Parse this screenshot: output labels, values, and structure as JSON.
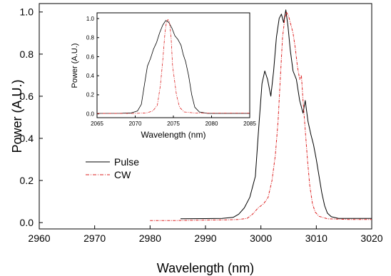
{
  "chart_data": [
    {
      "id": "main",
      "type": "line",
      "xlabel": "Wavelength (nm)",
      "ylabel": "Power (A.U.)",
      "xlim": [
        2960,
        3020
      ],
      "ylim": [
        -0.03,
        1.04
      ],
      "xticks": [
        2960,
        2970,
        2980,
        2990,
        3000,
        3010,
        3020
      ],
      "xtick_labels": [
        "2960",
        "2970",
        "2980",
        "2990",
        "3000",
        "3010",
        "3020"
      ],
      "yticks": [
        0.0,
        0.2,
        0.4,
        0.6,
        0.8,
        1.0
      ],
      "ytick_labels": [
        "0.0",
        "0.2",
        "0.4",
        "0.6",
        "0.8",
        "1.0"
      ],
      "legend": {
        "position": "center-left"
      },
      "series": [
        {
          "name": "Pulse",
          "color": "#000000",
          "style": "solid",
          "points": [
            [
              2985.5,
              0.018
            ],
            [
              2990,
              0.019
            ],
            [
              2993,
              0.02
            ],
            [
              2995,
              0.025
            ],
            [
              2996,
              0.04
            ],
            [
              2997,
              0.07
            ],
            [
              2998,
              0.12
            ],
            [
              2999,
              0.22
            ],
            [
              2999.6,
              0.45
            ],
            [
              3000.2,
              0.66
            ],
            [
              3000.7,
              0.72
            ],
            [
              3001.2,
              0.68
            ],
            [
              3001.8,
              0.6
            ],
            [
              3002.3,
              0.72
            ],
            [
              3002.8,
              0.88
            ],
            [
              3003.3,
              0.97
            ],
            [
              3003.7,
              0.99
            ],
            [
              3004.1,
              0.95
            ],
            [
              3004.5,
              1.01
            ],
            [
              3004.9,
              0.93
            ],
            [
              3005.3,
              0.82
            ],
            [
              3005.8,
              0.72
            ],
            [
              3006.4,
              0.68
            ],
            [
              3007,
              0.58
            ],
            [
              3007.6,
              0.52
            ],
            [
              3008,
              0.58
            ],
            [
              3008.5,
              0.48
            ],
            [
              3009,
              0.42
            ],
            [
              3009.5,
              0.37
            ],
            [
              3010,
              0.3
            ],
            [
              3010.5,
              0.22
            ],
            [
              3011,
              0.14
            ],
            [
              3011.5,
              0.08
            ],
            [
              3012,
              0.045
            ],
            [
              3012.7,
              0.028
            ],
            [
              3014,
              0.02
            ],
            [
              3017,
              0.02
            ],
            [
              3020,
              0.02
            ]
          ]
        },
        {
          "name": "CW",
          "color": "#dd2222",
          "style": "dash-dot",
          "points": [
            [
              2980,
              0.01
            ],
            [
              2985,
              0.01
            ],
            [
              2990,
              0.012
            ],
            [
              2994,
              0.013
            ],
            [
              2996,
              0.015
            ],
            [
              2997.5,
              0.02
            ],
            [
              2998.5,
              0.04
            ],
            [
              2999.5,
              0.07
            ],
            [
              3000.5,
              0.09
            ],
            [
              3001.3,
              0.12
            ],
            [
              3002,
              0.2
            ],
            [
              3002.6,
              0.32
            ],
            [
              3003.1,
              0.48
            ],
            [
              3003.5,
              0.68
            ],
            [
              3003.9,
              0.88
            ],
            [
              3004.3,
              0.97
            ],
            [
              3004.6,
              1.0
            ],
            [
              3005,
              0.98
            ],
            [
              3005.4,
              0.94
            ],
            [
              3005.8,
              0.9
            ],
            [
              3006.2,
              0.83
            ],
            [
              3006.6,
              0.74
            ],
            [
              3007,
              0.68
            ],
            [
              3007.3,
              0.7
            ],
            [
              3007.6,
              0.58
            ],
            [
              3008,
              0.44
            ],
            [
              3008.4,
              0.3
            ],
            [
              3008.8,
              0.18
            ],
            [
              3009.3,
              0.09
            ],
            [
              3009.8,
              0.05
            ],
            [
              3010.5,
              0.03
            ],
            [
              3012,
              0.018
            ],
            [
              3016,
              0.015
            ],
            [
              3020,
              0.015
            ]
          ]
        }
      ]
    },
    {
      "id": "inset",
      "type": "line",
      "xlabel": "Wavelength (nm)",
      "ylabel": "Power (A.U.)",
      "xlim": [
        2065,
        2085
      ],
      "ylim": [
        -0.04,
        1.06
      ],
      "xticks": [
        2065,
        2070,
        2075,
        2080,
        2085
      ],
      "xtick_labels": [
        "2065",
        "2070",
        "2075",
        "2080",
        "2085"
      ],
      "yticks": [
        0.0,
        0.2,
        0.4,
        0.6,
        0.8,
        1.0
      ],
      "ytick_labels": [
        "0.0",
        "0.2",
        "0.4",
        "0.6",
        "0.8",
        "1.0"
      ],
      "series": [
        {
          "color": "#000000",
          "style": "solid",
          "points": [
            [
              2065,
              0.005
            ],
            [
              2068,
              0.006
            ],
            [
              2069.5,
              0.01
            ],
            [
              2070.3,
              0.03
            ],
            [
              2070.8,
              0.1
            ],
            [
              2071.2,
              0.3
            ],
            [
              2071.6,
              0.5
            ],
            [
              2072,
              0.58
            ],
            [
              2072.4,
              0.68
            ],
            [
              2072.8,
              0.75
            ],
            [
              2073.2,
              0.85
            ],
            [
              2073.6,
              0.93
            ],
            [
              2074,
              0.98
            ],
            [
              2074.4,
              0.96
            ],
            [
              2074.8,
              0.9
            ],
            [
              2075.2,
              0.82
            ],
            [
              2075.6,
              0.78
            ],
            [
              2076,
              0.72
            ],
            [
              2076.3,
              0.62
            ],
            [
              2076.6,
              0.55
            ],
            [
              2077,
              0.4
            ],
            [
              2077.4,
              0.2
            ],
            [
              2077.8,
              0.07
            ],
            [
              2078.4,
              0.02
            ],
            [
              2079.5,
              0.005
            ],
            [
              2085,
              0.005
            ]
          ]
        },
        {
          "color": "#dd2222",
          "style": "dash-dot",
          "points": [
            [
              2065,
              0.004
            ],
            [
              2070,
              0.005
            ],
            [
              2071.5,
              0.01
            ],
            [
              2072.3,
              0.03
            ],
            [
              2072.9,
              0.09
            ],
            [
              2073.3,
              0.3
            ],
            [
              2073.6,
              0.55
            ],
            [
              2073.9,
              0.85
            ],
            [
              2074.1,
              0.97
            ],
            [
              2074.3,
              0.99
            ],
            [
              2074.5,
              0.96
            ],
            [
              2074.7,
              0.8
            ],
            [
              2074.9,
              0.5
            ],
            [
              2075.1,
              0.38
            ],
            [
              2075.4,
              0.2
            ],
            [
              2075.8,
              0.07
            ],
            [
              2076.4,
              0.02
            ],
            [
              2078,
              0.008
            ],
            [
              2085,
              0.008
            ]
          ]
        }
      ]
    }
  ]
}
